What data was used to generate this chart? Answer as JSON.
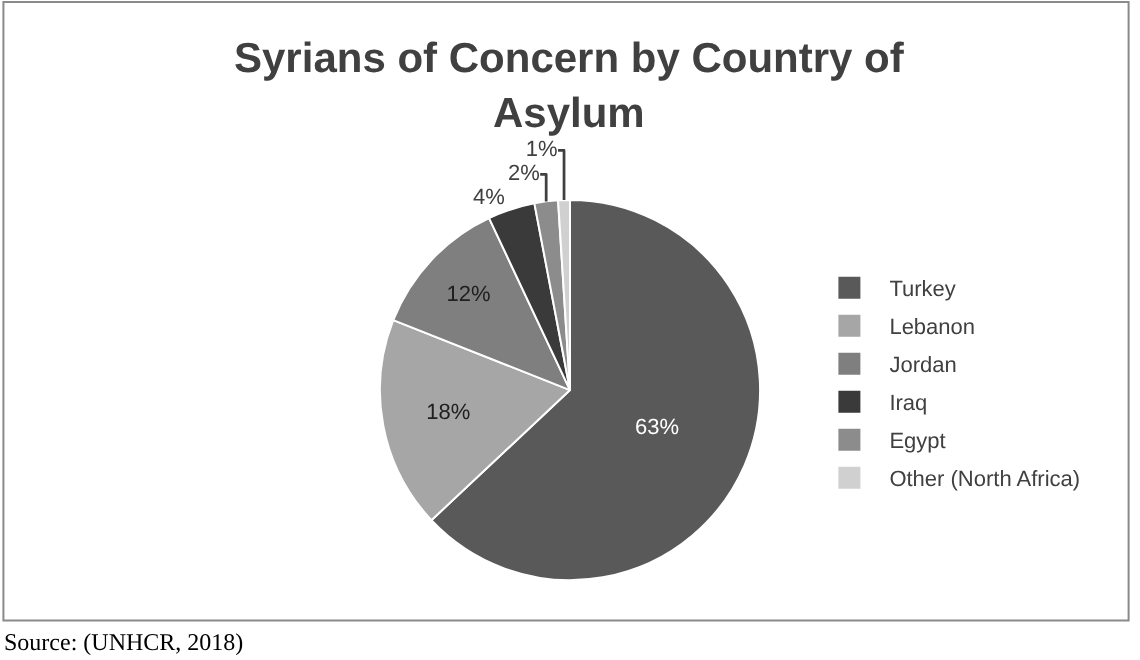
{
  "chart_data": {
    "type": "pie",
    "title": "Syrians of Concern by Country of Asylum",
    "categories": [
      "Turkey",
      "Lebanon",
      "Jordan",
      "Iraq",
      "Egypt",
      "Other (North Africa)"
    ],
    "values": [
      63,
      18,
      12,
      4,
      2,
      1
    ],
    "value_labels": [
      "63%",
      "18%",
      "12%",
      "4%",
      "2%",
      "1%"
    ],
    "colors": [
      "#595959",
      "#a6a6a6",
      "#7f7f7f",
      "#3a3a3a",
      "#8c8c8c",
      "#d0d0d0"
    ],
    "legend": "right",
    "annotations": [
      "Source: (UNHCR, 2018)"
    ]
  }
}
